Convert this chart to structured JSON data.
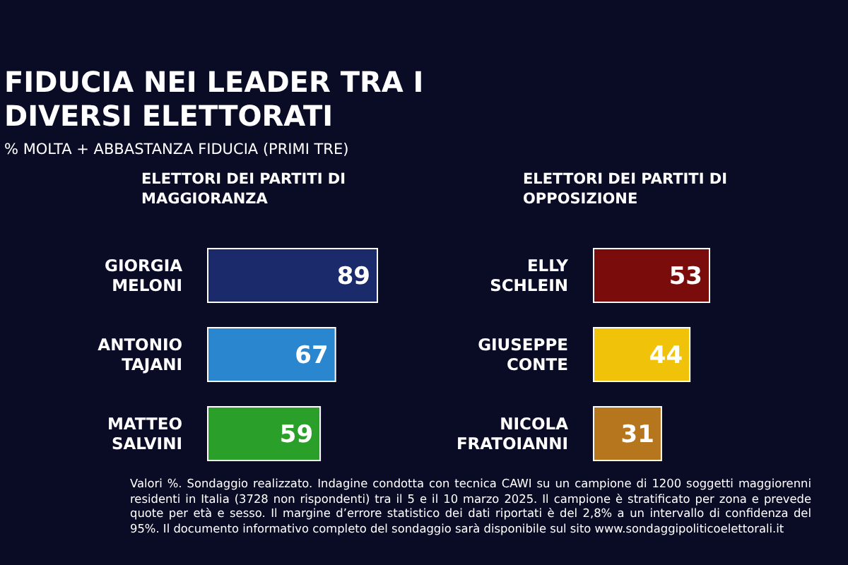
{
  "chart_data": [
    {
      "type": "bar",
      "orientation": "horizontal",
      "title": "FIDUCIA NEI LEADER TRA I DIVERSI ELETTORATI",
      "subtitle": "% MOLTA + ABBASTANZA FIDUCIA (PRIMI TRE)",
      "annotations": [
        "ELETTORI DEI PARTITI DI MAGGIORANZA"
      ],
      "categories": [
        "GIORGIA MELONI",
        "ANTONIO TAJANI",
        "MATTEO SALVINI"
      ],
      "values": [
        89,
        67,
        59
      ],
      "colors": [
        "#1b2a6b",
        "#2b86d0",
        "#2aa02a"
      ],
      "data_labels": true,
      "legend": false,
      "grid": false
    },
    {
      "type": "bar",
      "orientation": "horizontal",
      "title": "ELETTORI DEI PARTITI DI OPPOSIZIONE",
      "annotations": [
        "Valori %. Sondaggio realizzato. Indagine condotta con tecnica CAWI su un campione di 1200 soggetti maggiorenni residenti in Italia (3728 non rispondenti) tra il 5 e il 10 marzo 2025. Il campione è stratificato per zona e prevede quote per età e sesso. Il margine d’errore statistico dei dati riportati è del 2,8% a un intervallo di confidenza del 95%. Il documento informativo completo del sondaggio sarà disponibile sul sito www.sondaggipoliticoelettorali.it"
      ],
      "categories": [
        "ELLY SCHLEIN",
        "GIUSEPPE CONTE",
        "NICOLA FRATOIANNI"
      ],
      "values": [
        53,
        44,
        31
      ],
      "colors": [
        "#7a0c0c",
        "#f0c20a",
        "#b5761e"
      ],
      "data_labels": true,
      "legend": false,
      "grid": false
    }
  ]
}
